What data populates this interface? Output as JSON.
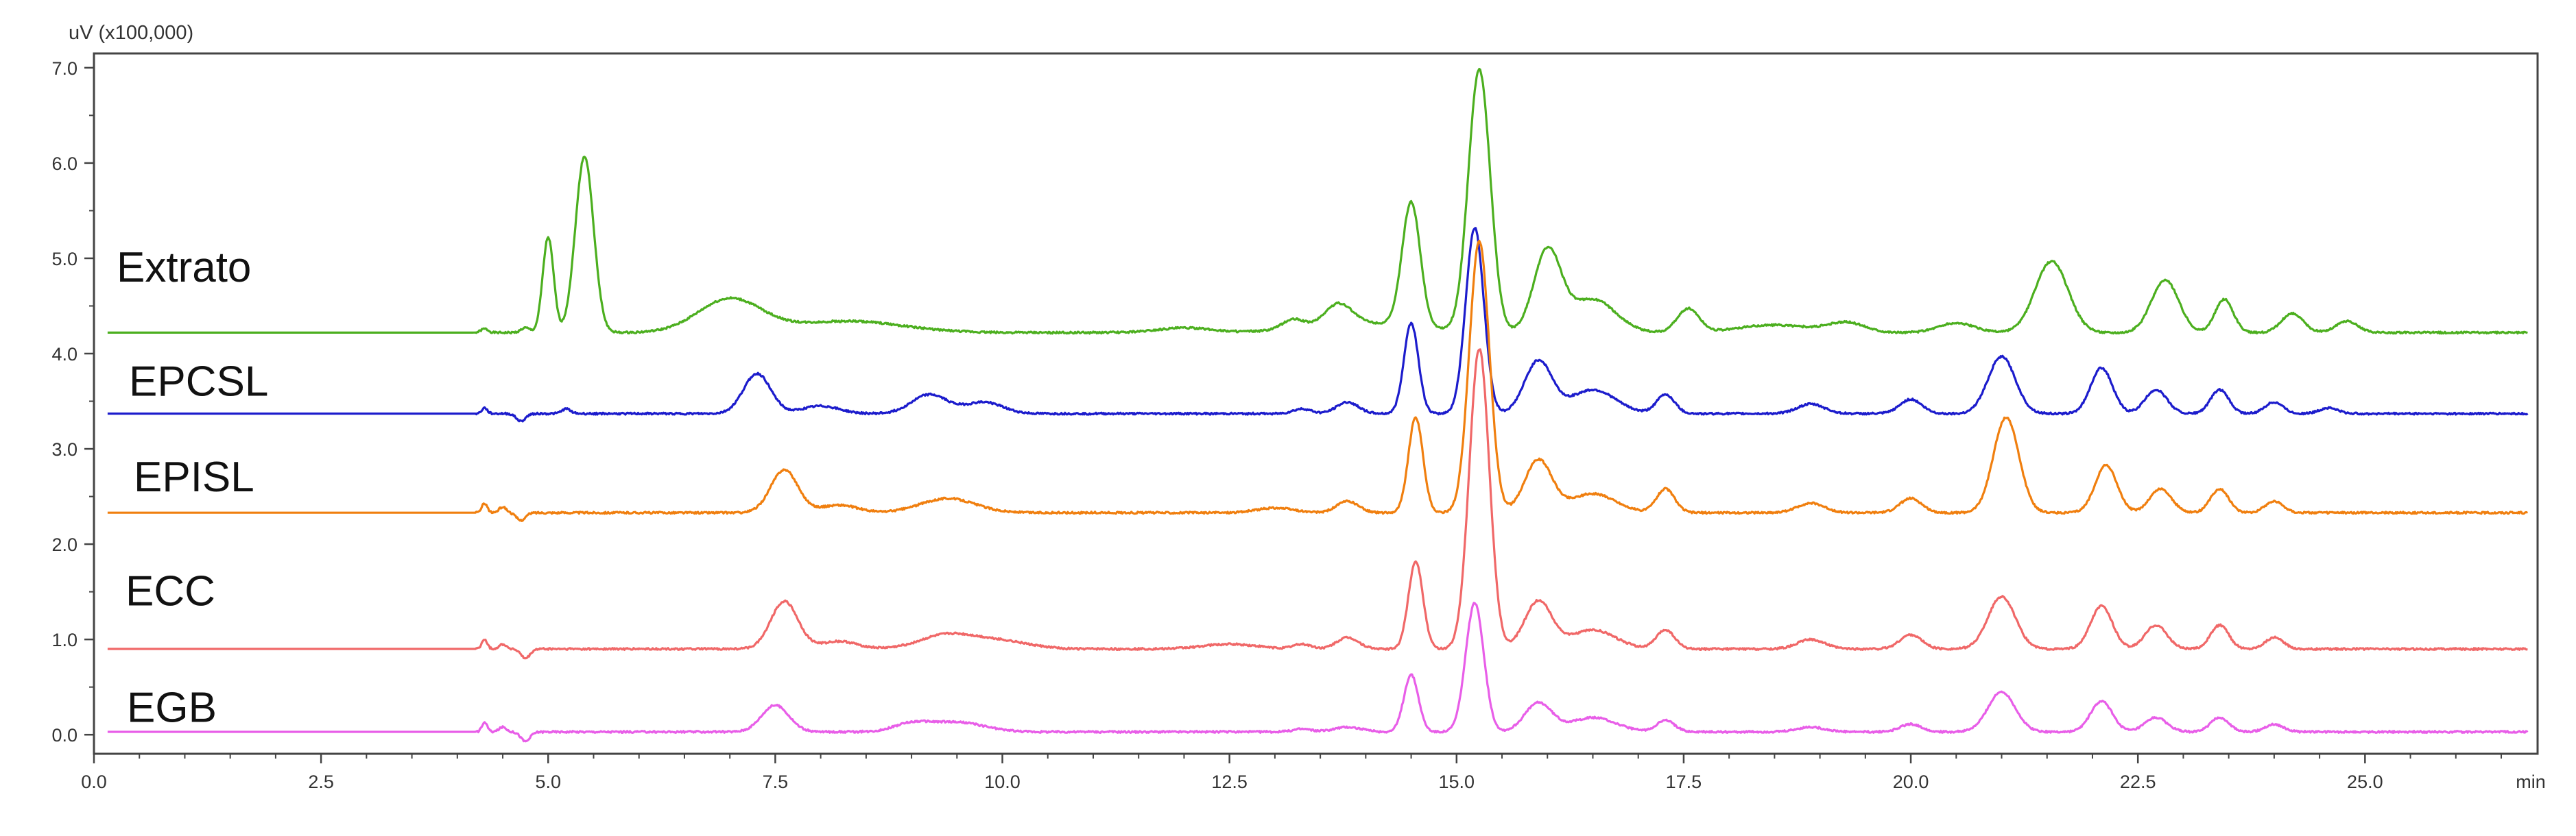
{
  "chart_data": {
    "type": "line",
    "title": "",
    "ylabel": "uV  (x100,000)",
    "xunit": "min",
    "xlim": [
      0,
      26.9
    ],
    "ylim": [
      -0.2,
      7.15
    ],
    "grid": false,
    "legend": "inline-left",
    "x_ticks": [
      {
        "value": 0.0,
        "label": "0.0"
      },
      {
        "value": 2.5,
        "label": "2.5"
      },
      {
        "value": 5.0,
        "label": "5.0"
      },
      {
        "value": 7.5,
        "label": "7.5"
      },
      {
        "value": 10.0,
        "label": "10.0"
      },
      {
        "value": 12.5,
        "label": "12.5"
      },
      {
        "value": 15.0,
        "label": "15.0"
      },
      {
        "value": 17.5,
        "label": "17.5"
      },
      {
        "value": 20.0,
        "label": "20.0"
      },
      {
        "value": 22.5,
        "label": "22.5"
      },
      {
        "value": 25.0,
        "label": "25.0"
      }
    ],
    "y_ticks": [
      {
        "value": 0.0,
        "label": "0.0"
      },
      {
        "value": 1.0,
        "label": "1.0"
      },
      {
        "value": 2.0,
        "label": "2.0"
      },
      {
        "value": 3.0,
        "label": "3.0"
      },
      {
        "value": 4.0,
        "label": "4.0"
      },
      {
        "value": 5.0,
        "label": "5.0"
      },
      {
        "value": 6.0,
        "label": "6.0"
      },
      {
        "value": 7.0,
        "label": "7.0"
      }
    ],
    "series": [
      {
        "name": "Extrato",
        "color": "#4caf1f",
        "baseline": 4.22,
        "peaks": [
          [
            4.3,
            0.04,
            0.04
          ],
          [
            4.75,
            0.05,
            0.05
          ],
          [
            5.0,
            1.0,
            0.06
          ],
          [
            5.4,
            1.85,
            0.1
          ],
          [
            7.0,
            0.35,
            0.35
          ],
          [
            8.3,
            0.12,
            0.6
          ],
          [
            12.0,
            0.05,
            0.3
          ],
          [
            13.2,
            0.1,
            0.12
          ],
          [
            13.7,
            0.22,
            0.15
          ],
          [
            14.5,
            1.3,
            0.1
          ],
          [
            15.25,
            2.75,
            0.12
          ],
          [
            16.0,
            0.85,
            0.15
          ],
          [
            16.5,
            0.35,
            0.25
          ],
          [
            17.55,
            0.25,
            0.12
          ],
          [
            19.3,
            0.1,
            0.2
          ],
          [
            20.5,
            0.1,
            0.2
          ],
          [
            21.55,
            0.75,
            0.18
          ],
          [
            22.8,
            0.55,
            0.15
          ],
          [
            23.45,
            0.35,
            0.1
          ],
          [
            24.2,
            0.2,
            0.12
          ],
          [
            24.8,
            0.12,
            0.12
          ],
          [
            14.0,
            0.1,
            0.6
          ],
          [
            18.5,
            0.08,
            0.4
          ]
        ]
      },
      {
        "name": "EPCSL",
        "color": "#1c1ccc",
        "baseline": 3.37,
        "peaks": [
          [
            4.3,
            0.06,
            0.03
          ],
          [
            4.7,
            -0.08,
            0.05
          ],
          [
            5.2,
            0.05,
            0.05
          ],
          [
            7.3,
            0.42,
            0.15
          ],
          [
            8.0,
            0.08,
            0.2
          ],
          [
            9.2,
            0.2,
            0.2
          ],
          [
            9.8,
            0.12,
            0.2
          ],
          [
            13.3,
            0.05,
            0.1
          ],
          [
            13.8,
            0.12,
            0.12
          ],
          [
            14.5,
            0.95,
            0.08
          ],
          [
            15.2,
            1.95,
            0.1
          ],
          [
            15.9,
            0.55,
            0.15
          ],
          [
            16.5,
            0.25,
            0.25
          ],
          [
            17.3,
            0.2,
            0.1
          ],
          [
            18.9,
            0.1,
            0.15
          ],
          [
            20.0,
            0.15,
            0.12
          ],
          [
            21.0,
            0.6,
            0.15
          ],
          [
            22.1,
            0.48,
            0.12
          ],
          [
            22.7,
            0.25,
            0.12
          ],
          [
            23.4,
            0.25,
            0.1
          ],
          [
            24.0,
            0.12,
            0.1
          ],
          [
            24.6,
            0.06,
            0.1
          ]
        ]
      },
      {
        "name": "EPISL",
        "color": "#f07f0f",
        "baseline": 2.33,
        "peaks": [
          [
            4.3,
            0.1,
            0.03
          ],
          [
            4.5,
            0.06,
            0.04
          ],
          [
            4.7,
            -0.08,
            0.05
          ],
          [
            7.6,
            0.45,
            0.15
          ],
          [
            8.2,
            0.08,
            0.2
          ],
          [
            9.4,
            0.15,
            0.3
          ],
          [
            13.0,
            0.05,
            0.2
          ],
          [
            13.8,
            0.12,
            0.12
          ],
          [
            14.55,
            1.0,
            0.08
          ],
          [
            15.25,
            2.85,
            0.11
          ],
          [
            15.9,
            0.55,
            0.15
          ],
          [
            16.5,
            0.2,
            0.25
          ],
          [
            17.3,
            0.25,
            0.1
          ],
          [
            18.9,
            0.1,
            0.15
          ],
          [
            20.0,
            0.15,
            0.12
          ],
          [
            21.05,
            1.0,
            0.14
          ],
          [
            22.15,
            0.5,
            0.12
          ],
          [
            22.75,
            0.25,
            0.12
          ],
          [
            23.4,
            0.25,
            0.1
          ],
          [
            24.0,
            0.12,
            0.1
          ]
        ]
      },
      {
        "name": "ECC",
        "color": "#f06868",
        "baseline": 0.9,
        "peaks": [
          [
            4.3,
            0.1,
            0.03
          ],
          [
            4.5,
            0.05,
            0.04
          ],
          [
            4.75,
            -0.1,
            0.05
          ],
          [
            7.6,
            0.5,
            0.15
          ],
          [
            8.2,
            0.08,
            0.2
          ],
          [
            9.4,
            0.15,
            0.3
          ],
          [
            10.0,
            0.08,
            0.3
          ],
          [
            12.5,
            0.05,
            0.3
          ],
          [
            13.3,
            0.05,
            0.1
          ],
          [
            13.8,
            0.12,
            0.12
          ],
          [
            14.55,
            0.92,
            0.08
          ],
          [
            15.25,
            3.15,
            0.11
          ],
          [
            15.9,
            0.5,
            0.15
          ],
          [
            16.5,
            0.2,
            0.25
          ],
          [
            17.3,
            0.2,
            0.1
          ],
          [
            18.9,
            0.1,
            0.15
          ],
          [
            20.0,
            0.15,
            0.12
          ],
          [
            21.0,
            0.55,
            0.15
          ],
          [
            22.1,
            0.45,
            0.12
          ],
          [
            22.7,
            0.25,
            0.12
          ],
          [
            23.4,
            0.25,
            0.1
          ],
          [
            24.0,
            0.12,
            0.1
          ]
        ]
      },
      {
        "name": "EGB",
        "color": "#e85ee8",
        "baseline": 0.03,
        "peaks": [
          [
            4.3,
            0.1,
            0.03
          ],
          [
            4.5,
            0.05,
            0.04
          ],
          [
            4.75,
            -0.1,
            0.05
          ],
          [
            7.5,
            0.28,
            0.15
          ],
          [
            9.0,
            0.08,
            0.2
          ],
          [
            9.5,
            0.1,
            0.3
          ],
          [
            13.3,
            0.03,
            0.1
          ],
          [
            13.8,
            0.05,
            0.15
          ],
          [
            14.5,
            0.6,
            0.08
          ],
          [
            15.2,
            1.35,
            0.1
          ],
          [
            15.9,
            0.3,
            0.15
          ],
          [
            16.5,
            0.15,
            0.25
          ],
          [
            17.3,
            0.12,
            0.1
          ],
          [
            18.9,
            0.05,
            0.15
          ],
          [
            20.0,
            0.08,
            0.12
          ],
          [
            21.0,
            0.42,
            0.15
          ],
          [
            22.1,
            0.32,
            0.12
          ],
          [
            22.7,
            0.15,
            0.12
          ],
          [
            23.4,
            0.15,
            0.1
          ],
          [
            24.0,
            0.08,
            0.1
          ]
        ]
      }
    ],
    "series_label_y": [
      4.9,
      3.7,
      2.7,
      1.5,
      0.28
    ]
  }
}
